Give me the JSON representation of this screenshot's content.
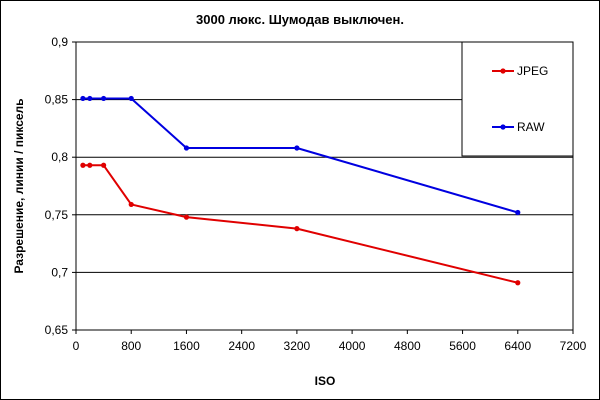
{
  "chart_data": {
    "type": "line",
    "title": "3000 люкс. Шумодав выключен.",
    "xlabel": "ISO",
    "ylabel": "Разрешение, линии / пиксель",
    "xlim": [
      0,
      7200
    ],
    "ylim": [
      0.65,
      0.9
    ],
    "x_ticks": [
      0,
      800,
      1600,
      2400,
      3200,
      4000,
      4800,
      5600,
      6400,
      7200
    ],
    "x_tick_labels": [
      "0",
      "800",
      "1600",
      "2400",
      "3200",
      "4000",
      "4800",
      "5600",
      "6400",
      "7200"
    ],
    "y_ticks": [
      0.65,
      0.7,
      0.75,
      0.8,
      0.85,
      0.9
    ],
    "y_tick_labels": [
      "0,65",
      "0,7",
      "0,75",
      "0,8",
      "0,85",
      "0,9"
    ],
    "grid": "horizontal",
    "legend_position": "top-right",
    "series": [
      {
        "name": "JPEG",
        "color": "#e00000",
        "x": [
          100,
          200,
          400,
          800,
          1600,
          3200,
          6400
        ],
        "y": [
          0.793,
          0.793,
          0.793,
          0.759,
          0.748,
          0.738,
          0.691
        ]
      },
      {
        "name": "RAW",
        "color": "#0000e0",
        "x": [
          100,
          200,
          400,
          800,
          1600,
          3200,
          6400
        ],
        "y": [
          0.851,
          0.851,
          0.851,
          0.851,
          0.808,
          0.808,
          0.752
        ]
      }
    ]
  }
}
